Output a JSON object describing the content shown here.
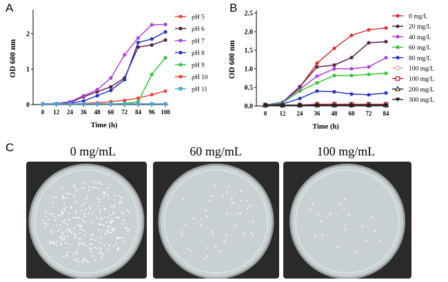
{
  "panels": {
    "a": "A",
    "b": "B",
    "c": "C"
  },
  "chart_data": [
    {
      "type": "line",
      "ylabel": "OD 600 nm",
      "xlabel": "Time (h)",
      "x": [
        0,
        12,
        24,
        36,
        48,
        60,
        72,
        84,
        96,
        108
      ],
      "xticks": [
        "0",
        "12",
        "24",
        "36",
        "48",
        "60",
        "72",
        "84",
        "96",
        "108"
      ],
      "yticks": [
        "0",
        "1",
        "2"
      ],
      "ylim": [
        0,
        2.6
      ],
      "legend": "right",
      "series": [
        {
          "name": "pH 5",
          "color": "#e8453c",
          "marker": "circle",
          "values": [
            0.02,
            0.02,
            0.02,
            0.02,
            0.02,
            0.02,
            0.02,
            0.02,
            0.02,
            0.02
          ]
        },
        {
          "name": "pH 6",
          "color": "#5a1a45",
          "marker": "circle",
          "values": [
            0.02,
            0.03,
            0.06,
            0.22,
            0.36,
            0.5,
            0.75,
            1.62,
            1.68,
            1.82
          ]
        },
        {
          "name": "pH 7",
          "color": "#b03ee0",
          "marker": "circle",
          "values": [
            0.02,
            0.03,
            0.08,
            0.25,
            0.42,
            0.75,
            1.4,
            1.88,
            2.25,
            2.26
          ]
        },
        {
          "name": "pH 8",
          "color": "#2233cc",
          "marker": "circle",
          "values": [
            0.02,
            0.02,
            0.04,
            0.1,
            0.25,
            0.4,
            0.7,
            1.75,
            1.85,
            2.05
          ]
        },
        {
          "name": "pH 9",
          "color": "#2ec82e",
          "marker": "circle",
          "values": [
            0.02,
            0.02,
            0.02,
            0.02,
            0.02,
            0.02,
            0.03,
            0.08,
            0.85,
            1.32
          ]
        },
        {
          "name": "pH 10",
          "color": "#e8453c",
          "marker": "circle",
          "values": [
            0.02,
            0.02,
            0.02,
            0.03,
            0.05,
            0.08,
            0.12,
            0.18,
            0.28,
            0.38
          ]
        },
        {
          "name": "pH 11",
          "color": "#4aa8e0",
          "marker": "square",
          "values": [
            0.02,
            0.02,
            0.02,
            0.02,
            0.02,
            0.02,
            0.02,
            0.02,
            0.02,
            0.02
          ]
        }
      ]
    },
    {
      "type": "line",
      "ylabel": "OD 600 nm",
      "xlabel": "Time (h)",
      "x": [
        0,
        12,
        24,
        36,
        48,
        60,
        72,
        84
      ],
      "xticks": [
        "0",
        "12",
        "24",
        "36",
        "48",
        "60",
        "72",
        "84"
      ],
      "yticks": [
        "0.0",
        "0.5",
        "1.0",
        "1.5",
        "2.0",
        "2.5"
      ],
      "ylim": [
        0,
        2.5
      ],
      "legend": "right",
      "series": [
        {
          "name": "0 mg/L",
          "color": "#e03030",
          "marker": "circle",
          "values": [
            0.02,
            0.1,
            0.5,
            1.15,
            1.55,
            1.9,
            2.05,
            2.1
          ]
        },
        {
          "name": "20 mg/L",
          "color": "#5a1a45",
          "marker": "circle",
          "values": [
            0.02,
            0.1,
            0.52,
            1.05,
            1.1,
            1.3,
            1.7,
            1.73
          ]
        },
        {
          "name": "40 mg/L",
          "color": "#b03ee0",
          "marker": "circle",
          "values": [
            0.02,
            0.1,
            0.45,
            0.8,
            1.0,
            1.0,
            1.05,
            1.3
          ]
        },
        {
          "name": "60 mg/L",
          "color": "#2ec82e",
          "marker": "circle",
          "values": [
            0.02,
            0.08,
            0.4,
            0.62,
            0.82,
            0.82,
            0.85,
            0.88
          ]
        },
        {
          "name": "80 mg/L",
          "color": "#2233cc",
          "marker": "circle",
          "values": [
            0.02,
            0.05,
            0.2,
            0.4,
            0.38,
            0.32,
            0.3,
            0.35
          ]
        },
        {
          "name": "100 mg/L",
          "color": "#e8a8a0",
          "marker": "open-circle",
          "values": [
            0.02,
            0.02,
            0.02,
            0.05,
            0.05,
            0.05,
            0.05,
            0.05
          ]
        },
        {
          "name": "100 mg/L",
          "color": "#c03030",
          "marker": "open-square",
          "values": [
            0.02,
            0.02,
            0.02,
            0.04,
            0.04,
            0.04,
            0.04,
            0.04
          ]
        },
        {
          "name": "200 mg/L",
          "color": "#202020",
          "marker": "open-triangle",
          "values": [
            0.02,
            0.02,
            0.02,
            0.02,
            0.02,
            0.02,
            0.02,
            0.02
          ]
        },
        {
          "name": "300 mg/L",
          "color": "#202020",
          "marker": "triangle-down",
          "values": [
            0.01,
            0.01,
            0.01,
            0.01,
            0.01,
            0.01,
            0.01,
            0.01
          ]
        }
      ]
    }
  ],
  "dishes": [
    {
      "label": "0 mg/mL",
      "colonies": "many"
    },
    {
      "label": "60 mg/mL",
      "colonies": "few"
    },
    {
      "label": "100 mg/mL",
      "colonies": "very few"
    }
  ]
}
